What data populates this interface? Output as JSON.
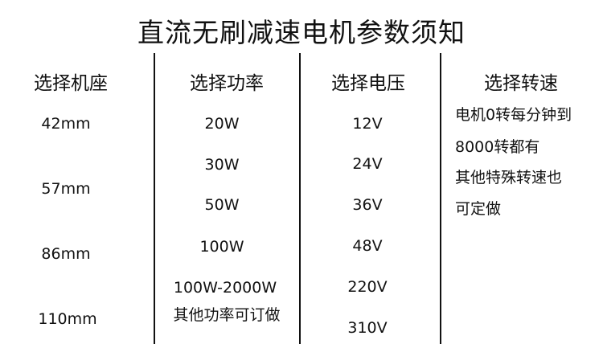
{
  "title": "直流无刷减速电机参数须知",
  "columns": [
    {
      "header": "选择机座",
      "items": [
        "42mm",
        "57mm",
        "86mm",
        "110mm"
      ]
    },
    {
      "header": "选择功率",
      "items": [
        "20W",
        "30W",
        "50W",
        "100W",
        "100W-2000W",
        "其他功率可订做"
      ]
    },
    {
      "header": "选择电压",
      "items": [
        "12V",
        "24V",
        "36V",
        "48V",
        "220V",
        "310V"
      ]
    },
    {
      "header": "选择转速",
      "lines": [
        "电机0转每分钟到",
        "8000转都有",
        "其他特殊转速也",
        "可定做"
      ]
    }
  ]
}
